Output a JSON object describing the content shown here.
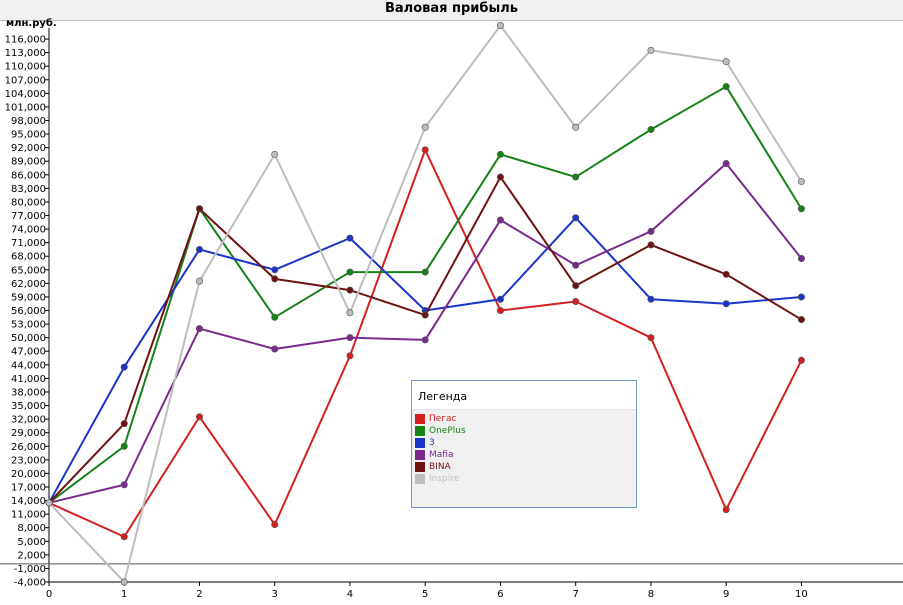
{
  "chart_data": {
    "type": "line",
    "title": "Валовая прибыль",
    "ylabel": "млн.руб.",
    "xlabel": "",
    "x": [
      0,
      1,
      2,
      3,
      4,
      5,
      6,
      7,
      8,
      9,
      10
    ],
    "ylim": [
      -4000,
      118000
    ],
    "xlim": [
      0,
      11.35
    ],
    "y_ticks": [
      -4000,
      -1000,
      2000,
      5000,
      8000,
      11000,
      14000,
      17000,
      20000,
      23000,
      26000,
      29000,
      32000,
      35000,
      38000,
      41000,
      44000,
      47000,
      50000,
      53000,
      56000,
      59000,
      62000,
      65000,
      68000,
      71000,
      74000,
      77000,
      80000,
      83000,
      86000,
      89000,
      92000,
      95000,
      98000,
      101000,
      104000,
      107000,
      110000,
      113000,
      116000
    ],
    "y_tick_labels": [
      "-4,000",
      "-1,000",
      "2,000",
      "5,000",
      "8,000",
      "11,000",
      "14,000",
      "17,000",
      "20,000",
      "23,000",
      "26,000",
      "29,000",
      "32,000",
      "35,000",
      "38,000",
      "41,000",
      "44,000",
      "47,000",
      "50,000",
      "53,000",
      "56,000",
      "59,000",
      "62,000",
      "65,000",
      "68,000",
      "71,000",
      "74,000",
      "77,000",
      "80,000",
      "83,000",
      "86,000",
      "89,000",
      "92,000",
      "95,000",
      "98,000",
      "101,000",
      "104,000",
      "107,000",
      "110,000",
      "113,000",
      "116,000"
    ],
    "x_tick_labels": [
      "0",
      "1",
      "2",
      "3",
      "4",
      "5",
      "6",
      "7",
      "8",
      "9",
      "10"
    ],
    "zero_line": 0,
    "grid": false,
    "legend_title": "Легенда",
    "legend_position": "center",
    "series": [
      {
        "name": "Пегас",
        "color": "#d42020",
        "values": [
          13500,
          6000,
          32500,
          8700,
          46000,
          91500,
          56000,
          58000,
          50000,
          12000,
          45000
        ]
      },
      {
        "name": "OnePlus",
        "color": "#178217",
        "values": [
          13500,
          26000,
          78500,
          54500,
          64500,
          64500,
          90500,
          85500,
          96000,
          105500,
          78500
        ]
      },
      {
        "name": "3",
        "color": "#1a33c8",
        "values": [
          13500,
          43500,
          69500,
          65000,
          72000,
          56000,
          58500,
          76500,
          58500,
          57500,
          59000
        ]
      },
      {
        "name": "Mafia",
        "color": "#7a2a8c",
        "values": [
          13500,
          17500,
          52000,
          47500,
          50000,
          49500,
          76000,
          66000,
          73500,
          88500,
          67500
        ]
      },
      {
        "name": "BINA",
        "color": "#6e1212",
        "values": [
          13500,
          31000,
          78500,
          63000,
          60500,
          55000,
          85500,
          61500,
          70500,
          64000,
          54000
        ]
      },
      {
        "name": "Inspire",
        "color": "#bdbdbd",
        "values": [
          13500,
          -4000,
          62500,
          90500,
          55500,
          96500,
          119000,
          96500,
          113500,
          111000,
          84500
        ]
      }
    ]
  }
}
